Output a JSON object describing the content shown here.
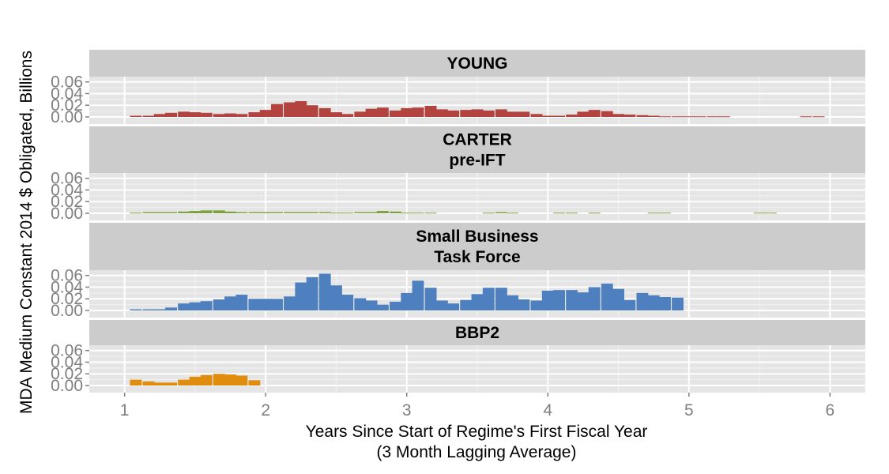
{
  "chart_data": {
    "type": "bar",
    "xlabel": "Years Since Start of Regime's First Fiscal Year",
    "xlabel_sub": "(3 Month Lagging Average)",
    "ylabel": "MDA Medium Constant 2014 $ Obligated, Billions",
    "xlim": [
      0.75,
      6.25
    ],
    "xticks": [
      "1",
      "2",
      "3",
      "4",
      "5",
      "6"
    ],
    "ylim": [
      0,
      0.065
    ],
    "yticks": [
      "0.00",
      "0.02",
      "0.04",
      "0.06"
    ],
    "grid": true,
    "bin_width": 0.0833,
    "panels": [
      {
        "name": "YOUNG",
        "title_lines": [
          "YOUNG"
        ],
        "color": "#B2433E",
        "x": [
          1.08,
          1.17,
          1.25,
          1.33,
          1.42,
          1.5,
          1.58,
          1.67,
          1.75,
          1.83,
          1.92,
          2.0,
          2.08,
          2.17,
          2.25,
          2.33,
          2.42,
          2.5,
          2.58,
          2.67,
          2.75,
          2.83,
          2.92,
          3.0,
          3.08,
          3.17,
          3.25,
          3.33,
          3.42,
          3.5,
          3.58,
          3.67,
          3.75,
          3.83,
          3.92,
          4.0,
          4.08,
          4.17,
          4.25,
          4.33,
          4.42,
          4.5,
          4.58,
          4.67,
          4.75,
          4.83,
          4.92,
          5.0,
          5.08,
          5.17,
          5.25,
          5.33,
          5.42,
          5.5,
          5.58,
          5.67,
          5.75,
          5.83,
          5.92
        ],
        "values": [
          0.002,
          0.002,
          0.005,
          0.007,
          0.009,
          0.008,
          0.007,
          0.005,
          0.006,
          0.005,
          0.008,
          0.012,
          0.022,
          0.025,
          0.027,
          0.02,
          0.015,
          0.008,
          0.005,
          0.009,
          0.014,
          0.016,
          0.011,
          0.015,
          0.016,
          0.019,
          0.013,
          0.011,
          0.012,
          0.013,
          0.011,
          0.013,
          0.009,
          0.009,
          0.005,
          0.002,
          0.002,
          0.004,
          0.009,
          0.012,
          0.01,
          0.005,
          0.004,
          0.003,
          0.002,
          0.001,
          0.001,
          0.001,
          0.001,
          0.001,
          0.001,
          0,
          0,
          0,
          0,
          0,
          0,
          0.001,
          0.001
        ]
      },
      {
        "name": "CARTER pre-IFT",
        "title_lines": [
          "CARTER",
          "pre-IFT"
        ],
        "color": "#7BA23F",
        "x": [
          1.08,
          1.17,
          1.25,
          1.33,
          1.42,
          1.5,
          1.58,
          1.67,
          1.75,
          1.83,
          1.92,
          2.0,
          2.08,
          2.17,
          2.25,
          2.33,
          2.42,
          2.5,
          2.58,
          2.67,
          2.75,
          2.83,
          2.92,
          3.0,
          3.08,
          3.17,
          3.25,
          3.33,
          3.42,
          3.5,
          3.58,
          3.67,
          3.75,
          3.83,
          3.92,
          4.0,
          4.08,
          4.17,
          4.25,
          4.33,
          4.42,
          4.5,
          4.58,
          4.67,
          4.75,
          4.83,
          4.92,
          5.0,
          5.08,
          5.17,
          5.25,
          5.33,
          5.42,
          5.5,
          5.58
        ],
        "values": [
          0.001,
          0.002,
          0.002,
          0.002,
          0.003,
          0.004,
          0.005,
          0.005,
          0.003,
          0.002,
          0.002,
          0.002,
          0.002,
          0.002,
          0.002,
          0.002,
          0.002,
          0.001,
          0.001,
          0.002,
          0.002,
          0.004,
          0.003,
          0.001,
          0.001,
          0.001,
          0,
          0,
          0,
          0,
          0.001,
          0.002,
          0.001,
          0,
          0,
          0,
          0.001,
          0.001,
          0,
          0.001,
          0,
          0,
          0,
          0,
          0.001,
          0.001,
          0,
          0,
          0,
          0,
          0,
          0,
          0,
          0.001,
          0.001
        ]
      },
      {
        "name": "Small Business Task Force",
        "title_lines": [
          "Small Business",
          "Task Force"
        ],
        "color": "#4E7FBF",
        "x": [
          1.08,
          1.17,
          1.25,
          1.33,
          1.42,
          1.5,
          1.58,
          1.67,
          1.75,
          1.83,
          1.92,
          2.0,
          2.08,
          2.17,
          2.25,
          2.33,
          2.42,
          2.5,
          2.58,
          2.67,
          2.75,
          2.83,
          2.92,
          3.0,
          3.08,
          3.17,
          3.25,
          3.33,
          3.42,
          3.5,
          3.58,
          3.67,
          3.75,
          3.83,
          3.92,
          4.0,
          4.08,
          4.17,
          4.25,
          4.33,
          4.42,
          4.5,
          4.58,
          4.67,
          4.75,
          4.83,
          4.92
        ],
        "values": [
          0.002,
          0.002,
          0.002,
          0.005,
          0.012,
          0.014,
          0.016,
          0.019,
          0.024,
          0.027,
          0.02,
          0.02,
          0.02,
          0.024,
          0.048,
          0.057,
          0.063,
          0.043,
          0.027,
          0.021,
          0.017,
          0.01,
          0.015,
          0.03,
          0.051,
          0.039,
          0.017,
          0.012,
          0.018,
          0.028,
          0.039,
          0.039,
          0.026,
          0.019,
          0.017,
          0.034,
          0.035,
          0.035,
          0.031,
          0.04,
          0.046,
          0.037,
          0.018,
          0.03,
          0.026,
          0.023,
          0.022
        ]
      },
      {
        "name": "BBP2",
        "title_lines": [
          "BBP2"
        ],
        "color": "#E08C0F",
        "x": [
          1.08,
          1.17,
          1.25,
          1.33,
          1.42,
          1.5,
          1.58,
          1.67,
          1.75,
          1.83,
          1.92
        ],
        "values": [
          0.01,
          0.007,
          0.005,
          0.005,
          0.01,
          0.015,
          0.018,
          0.02,
          0.019,
          0.017,
          0.009
        ]
      }
    ]
  }
}
